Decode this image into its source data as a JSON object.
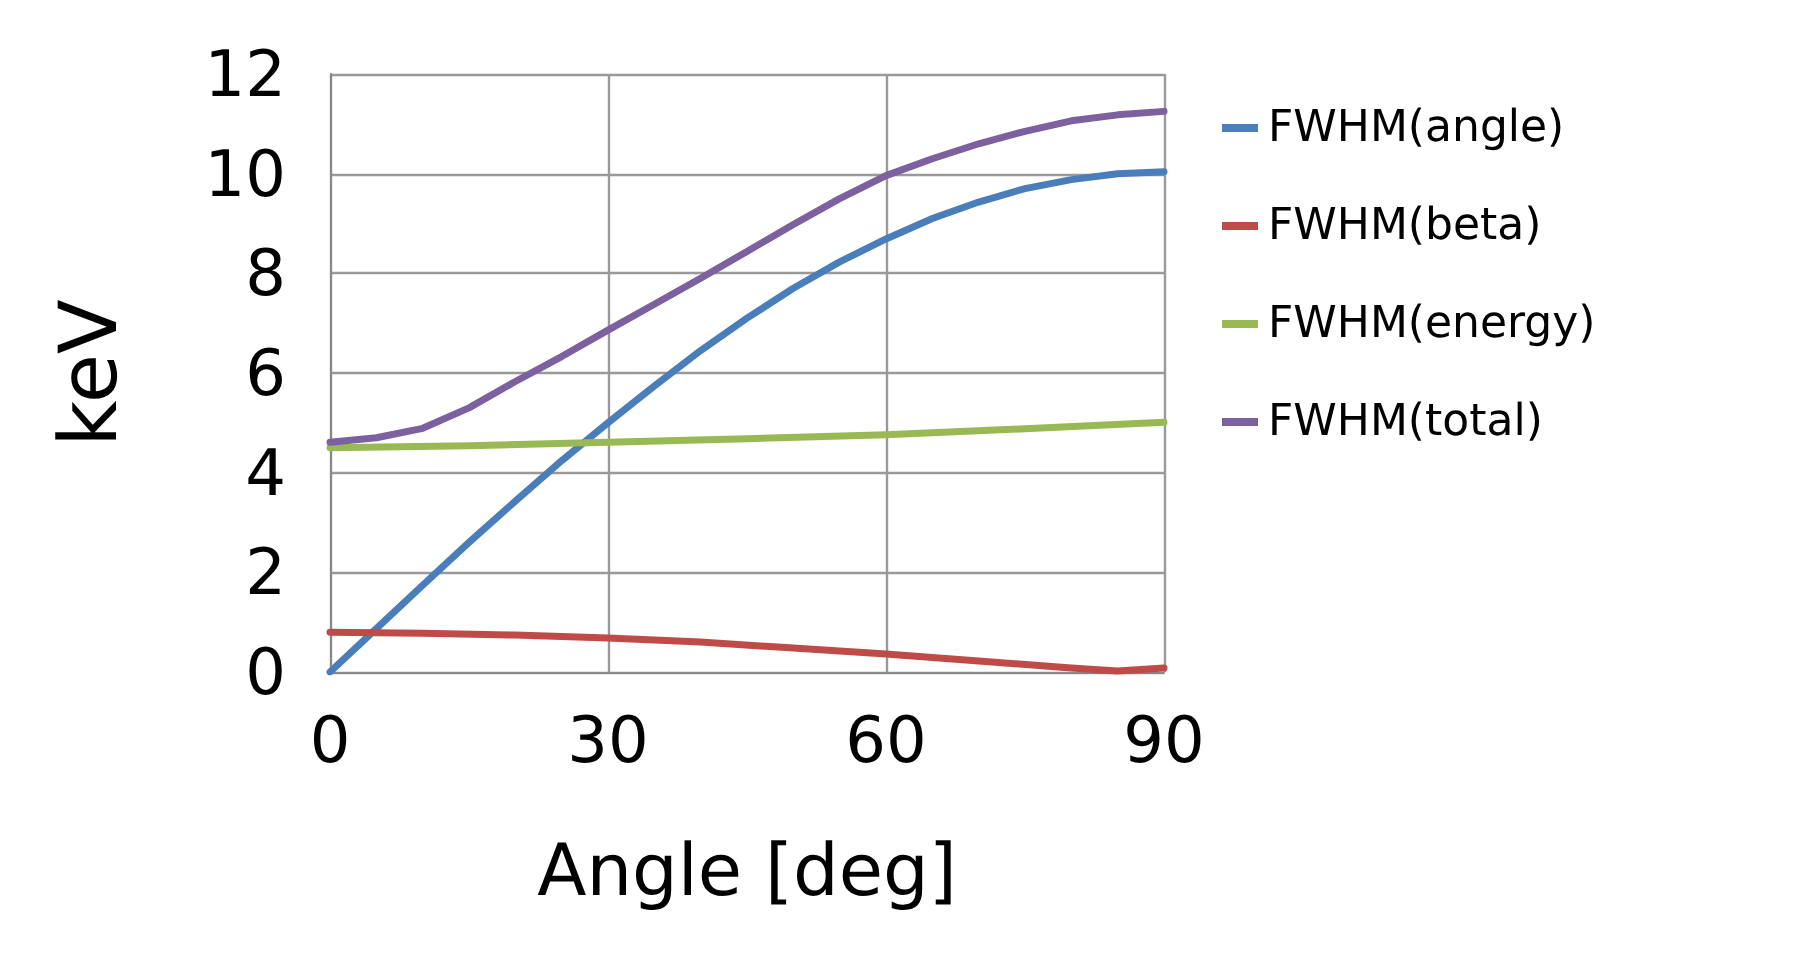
{
  "chart_data": {
    "type": "line",
    "xlabel": "Angle [deg]",
    "ylabel": "keV",
    "xlim": [
      0,
      90
    ],
    "xticks": [
      0,
      30,
      60,
      90
    ],
    "ylim": [
      0,
      12
    ],
    "yticks": [
      0,
      2,
      4,
      6,
      8,
      10,
      12
    ],
    "grid": true,
    "legend": "right",
    "marker": "none",
    "line_style": "solid",
    "series": [
      {
        "name": "FWHM(angle)",
        "color": "#4a7ebb",
        "x": [
          0,
          5,
          10,
          15,
          20,
          25,
          30,
          35,
          40,
          45,
          50,
          55,
          60,
          65,
          70,
          75,
          80,
          85,
          90
        ],
        "values": [
          0,
          0.87,
          1.74,
          2.6,
          3.43,
          4.24,
          5.0,
          5.74,
          6.45,
          7.1,
          7.7,
          8.23,
          8.69,
          9.1,
          9.43,
          9.7,
          9.88,
          10.0,
          10.04
        ]
      },
      {
        "name": "FWHM(beta)",
        "color": "#be4b48",
        "x": [
          0,
          10,
          20,
          30,
          40,
          50,
          60,
          70,
          80,
          85,
          90
        ],
        "values": [
          0.8,
          0.78,
          0.74,
          0.68,
          0.6,
          0.48,
          0.36,
          0.22,
          0.08,
          0.02,
          0.08
        ]
      },
      {
        "name": "FWHM(energy)",
        "color": "#98b954",
        "x": [
          0,
          15,
          30,
          45,
          60,
          75,
          90
        ],
        "values": [
          4.5,
          4.54,
          4.61,
          4.68,
          4.76,
          4.88,
          5.01
        ]
      },
      {
        "name": "FWHM(total)",
        "color": "#7d60a0",
        "x": [
          0,
          5,
          10,
          15,
          20,
          25,
          30,
          35,
          40,
          45,
          50,
          55,
          60,
          65,
          70,
          75,
          80,
          85,
          90
        ],
        "values": [
          4.61,
          4.7,
          4.89,
          5.3,
          5.83,
          6.33,
          6.86,
          7.38,
          7.9,
          8.44,
          8.98,
          9.5,
          9.96,
          10.3,
          10.6,
          10.85,
          11.06,
          11.18,
          11.25
        ]
      }
    ]
  }
}
